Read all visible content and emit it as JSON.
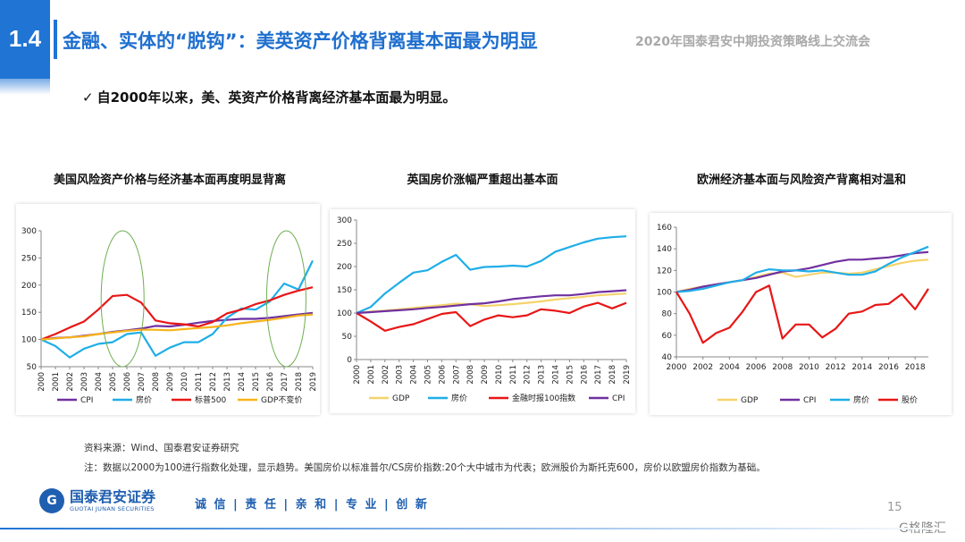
{
  "header": {
    "section": "1.4",
    "title": "金融、实体的“脱钩”：美英资产价格背离基本面最为明显",
    "conference": "2020年国泰君安中期投资策略线上交流会"
  },
  "bullet": {
    "check": "✓",
    "text": "自2000年以来，美、英资产价格背离经济基本面最为明显。"
  },
  "footer": {
    "source": "资料来源：Wind、国泰君安证券研究",
    "note": "注：数据以2000为100进行指数化处理，显示趋势。美国房价以标准普尔/CS房价指数:20个大中城市为代表；欧洲股价为斯托克600，房价以欧盟房价指数为基础。",
    "logo_mark": "G",
    "logo_cn": "国泰君安证券",
    "logo_en": "GUOTAI JUNAN SECURITIES",
    "slogan": "诚 信 | 责 任 | 亲 和 | 专 业 | 创 新",
    "page": "15",
    "watermark": "G格隆汇"
  },
  "chart_data": [
    {
      "type": "line",
      "title": "美国风险资产价格与经济基本面再度明显背离",
      "x": [
        "2000",
        "2001",
        "2002",
        "2003",
        "2004",
        "2005",
        "2006",
        "2007",
        "2008",
        "2009",
        "2010",
        "2011",
        "2012",
        "2013",
        "2014",
        "2015",
        "2016",
        "2017",
        "2018",
        "2019"
      ],
      "ylim": [
        50,
        300
      ],
      "yticks": [
        50,
        100,
        150,
        200,
        250,
        300
      ],
      "legend_position": "bottom",
      "series": [
        {
          "name": "CPI",
          "color": "#7030a0",
          "values": [
            100,
            103,
            104,
            107,
            110,
            114,
            117,
            120,
            125,
            124,
            127,
            131,
            134,
            136,
            138,
            138,
            140,
            143,
            146,
            149
          ]
        },
        {
          "name": "房价",
          "color": "#1faee8",
          "values": [
            100,
            88,
            67,
            83,
            92,
            95,
            110,
            113,
            70,
            85,
            95,
            95,
            110,
            140,
            157,
            155,
            170,
            203,
            192,
            245
          ]
        },
        {
          "name": "标普500",
          "color": "#e81616",
          "values": [
            100,
            110,
            122,
            133,
            155,
            180,
            182,
            168,
            135,
            130,
            128,
            124,
            132,
            148,
            155,
            165,
            172,
            182,
            190,
            196
          ]
        },
        {
          "name": "GDP不变价",
          "color": "#f7b31a",
          "values": [
            100,
            102,
            104,
            106,
            110,
            113,
            116,
            118,
            118,
            117,
            119,
            121,
            123,
            126,
            130,
            133,
            136,
            140,
            144,
            146
          ]
        }
      ],
      "annotations": [
        "ellipse around 2005-2007",
        "ellipse around 2016-2018"
      ]
    },
    {
      "type": "line",
      "title": "英国房价涨幅严重超出基本面",
      "x": [
        "2000",
        "2001",
        "2002",
        "2003",
        "2004",
        "2005",
        "2006",
        "2007",
        "2008",
        "2009",
        "2010",
        "2011",
        "2012",
        "2013",
        "2014",
        "2015",
        "2016",
        "2017",
        "2018",
        "2019"
      ],
      "ylim": [
        0,
        300
      ],
      "yticks": [
        0,
        50,
        100,
        150,
        200,
        250,
        300
      ],
      "legend_position": "bottom",
      "series": [
        {
          "name": "GDP",
          "color": "#f5d36b",
          "values": [
            100,
            103,
            105,
            108,
            111,
            114,
            117,
            120,
            119,
            115,
            117,
            119,
            122,
            125,
            129,
            132,
            135,
            138,
            140,
            142
          ]
        },
        {
          "name": "房价",
          "color": "#1faee8",
          "values": [
            100,
            113,
            142,
            165,
            187,
            192,
            210,
            225,
            193,
            199,
            200,
            202,
            200,
            212,
            232,
            242,
            252,
            260,
            263,
            265
          ]
        },
        {
          "name": "金融时报100指数",
          "color": "#e81616",
          "values": [
            100,
            82,
            62,
            70,
            76,
            87,
            98,
            102,
            72,
            86,
            95,
            91,
            95,
            108,
            105,
            100,
            114,
            122,
            110,
            122
          ]
        },
        {
          "name": "CPI",
          "color": "#7030a0",
          "values": [
            100,
            102,
            104,
            106,
            108,
            111,
            113,
            116,
            119,
            121,
            125,
            130,
            133,
            136,
            138,
            138,
            141,
            145,
            147,
            149
          ]
        }
      ]
    },
    {
      "type": "line",
      "title": "欧洲经济基本面与风险资产背离相对温和",
      "x": [
        "2000",
        "2001",
        "2002",
        "2003",
        "2004",
        "2005",
        "2006",
        "2007",
        "2008",
        "2009",
        "2010",
        "2011",
        "2012",
        "2013",
        "2014",
        "2015",
        "2016",
        "2017",
        "2018",
        "2019"
      ],
      "xticks": [
        "2000",
        "2002",
        "2004",
        "2006",
        "2008",
        "2010",
        "2012",
        "2014",
        "2016",
        "2018"
      ],
      "ylim": [
        40,
        160
      ],
      "yticks": [
        40,
        60,
        80,
        100,
        120,
        140,
        160
      ],
      "legend_position": "bottom",
      "series": [
        {
          "name": "GDP",
          "color": "#f5d36b",
          "values": [
            100,
            103,
            105,
            107,
            109,
            111,
            114,
            117,
            118,
            114,
            116,
            118,
            118,
            117,
            118,
            121,
            124,
            127,
            129,
            130
          ]
        },
        {
          "name": "CPI",
          "color": "#7030a0",
          "values": [
            100,
            102,
            105,
            107,
            109,
            111,
            113,
            116,
            119,
            120,
            122,
            125,
            128,
            130,
            130,
            131,
            132,
            134,
            136,
            137
          ]
        },
        {
          "name": "房价",
          "color": "#1faee8",
          "values": [
            100,
            101,
            103,
            106,
            109,
            111,
            118,
            121,
            120,
            120,
            119,
            120,
            118,
            116,
            116,
            119,
            126,
            132,
            137,
            142
          ]
        },
        {
          "name": "股价",
          "color": "#e81616",
          "values": [
            100,
            80,
            53,
            62,
            67,
            82,
            100,
            106,
            57,
            70,
            70,
            58,
            66,
            80,
            82,
            88,
            89,
            98,
            84,
            103
          ]
        }
      ]
    }
  ]
}
